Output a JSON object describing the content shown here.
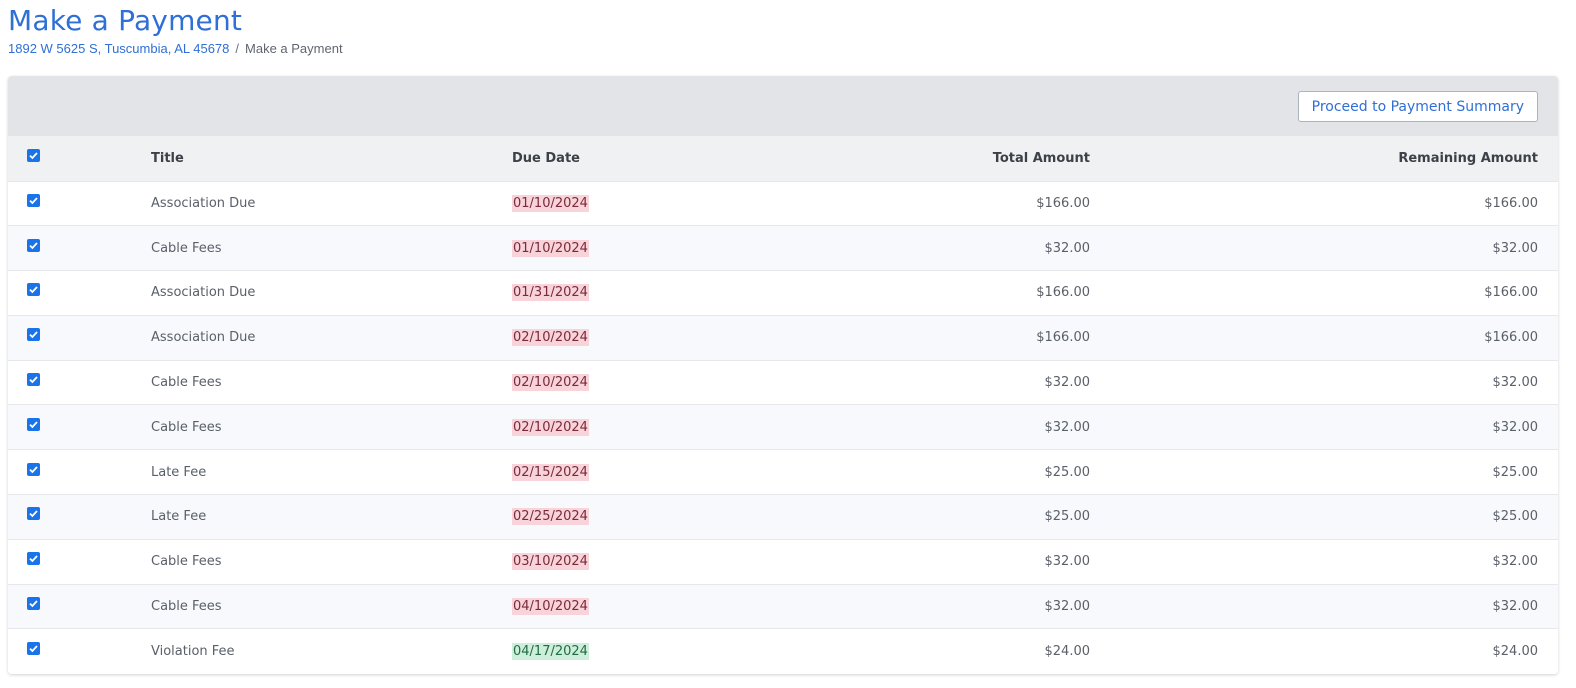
{
  "page": {
    "title": "Make a Payment",
    "breadcrumb": {
      "parent": "1892 W 5625 S, Tuscumbia, AL 45678",
      "separator": "/",
      "current": "Make a Payment"
    }
  },
  "toolbar": {
    "proceed_label": "Proceed to Payment Summary"
  },
  "table": {
    "headers": {
      "select_all_checked": true,
      "title": "Title",
      "due_date": "Due Date",
      "total_amount": "Total Amount",
      "remaining_amount": "Remaining Amount"
    },
    "rows": [
      {
        "checked": true,
        "title": "Association Due",
        "due_date": "01/10/2024",
        "status": "overdue",
        "total": "$166.00",
        "remaining": "$166.00"
      },
      {
        "checked": true,
        "title": "Cable Fees",
        "due_date": "01/10/2024",
        "status": "overdue",
        "total": "$32.00",
        "remaining": "$32.00"
      },
      {
        "checked": true,
        "title": "Association Due",
        "due_date": "01/31/2024",
        "status": "overdue",
        "total": "$166.00",
        "remaining": "$166.00"
      },
      {
        "checked": true,
        "title": "Association Due",
        "due_date": "02/10/2024",
        "status": "overdue",
        "total": "$166.00",
        "remaining": "$166.00"
      },
      {
        "checked": true,
        "title": "Cable Fees",
        "due_date": "02/10/2024",
        "status": "overdue",
        "total": "$32.00",
        "remaining": "$32.00"
      },
      {
        "checked": true,
        "title": "Cable Fees",
        "due_date": "02/10/2024",
        "status": "overdue",
        "total": "$32.00",
        "remaining": "$32.00"
      },
      {
        "checked": true,
        "title": "Late Fee",
        "due_date": "02/15/2024",
        "status": "overdue",
        "total": "$25.00",
        "remaining": "$25.00"
      },
      {
        "checked": true,
        "title": "Late Fee",
        "due_date": "02/25/2024",
        "status": "overdue",
        "total": "$25.00",
        "remaining": "$25.00"
      },
      {
        "checked": true,
        "title": "Cable Fees",
        "due_date": "03/10/2024",
        "status": "overdue",
        "total": "$32.00",
        "remaining": "$32.00"
      },
      {
        "checked": true,
        "title": "Cable Fees",
        "due_date": "04/10/2024",
        "status": "overdue",
        "total": "$32.00",
        "remaining": "$32.00"
      },
      {
        "checked": true,
        "title": "Violation Fee",
        "due_date": "04/17/2024",
        "status": "upcoming",
        "total": "$24.00",
        "remaining": "$24.00"
      }
    ]
  },
  "colors": {
    "accent": "#2f6fd6",
    "checkbox": "#1a73e8",
    "overdue_bg": "#f8d3da",
    "upcoming_bg": "#cdeedb"
  }
}
